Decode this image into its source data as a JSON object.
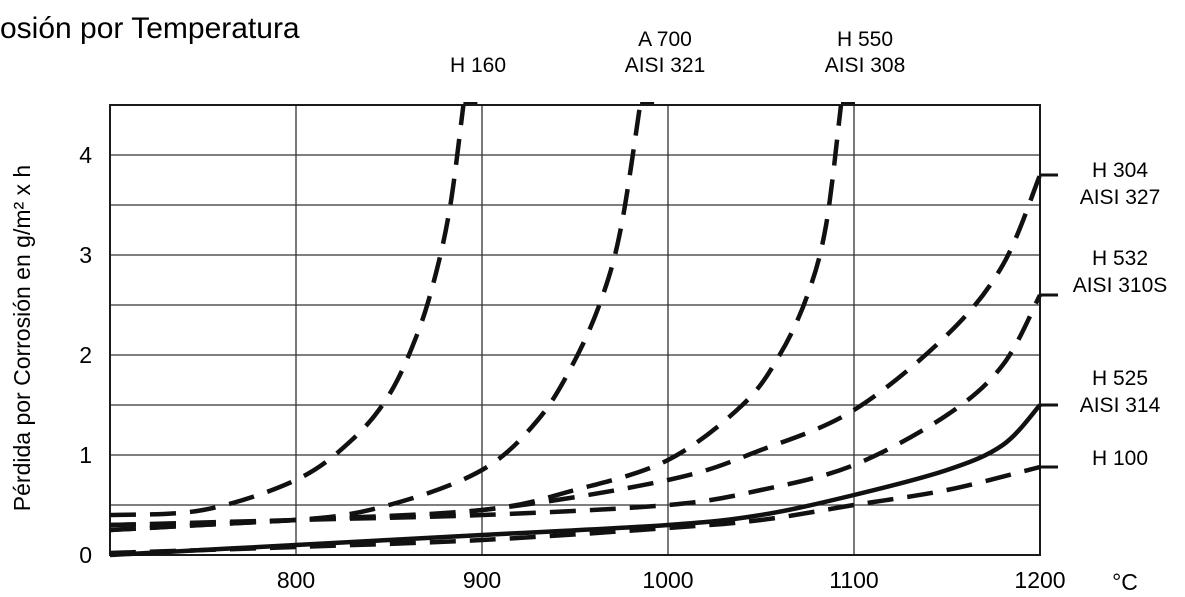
{
  "chart_data": {
    "type": "line",
    "title": "osión por Temperatura",
    "xlabel": "°C",
    "ylabel": "Pérdida por Corrosión en g/m² x h",
    "xlim": [
      700,
      1200
    ],
    "ylim": [
      0,
      4.5
    ],
    "x_ticks": [
      "800",
      "900",
      "1000",
      "1100",
      "1200"
    ],
    "y_ticks": [
      "0",
      "1",
      "2",
      "3",
      "4"
    ],
    "grid": true,
    "series": [
      {
        "name": "H 160",
        "label_lines": [
          "H 160"
        ],
        "style": "dashed",
        "points": [
          [
            700,
            0.4
          ],
          [
            750,
            0.45
          ],
          [
            800,
            0.75
          ],
          [
            830,
            1.15
          ],
          [
            850,
            1.6
          ],
          [
            865,
            2.2
          ],
          [
            875,
            2.8
          ],
          [
            883,
            3.5
          ],
          [
            890,
            4.5
          ]
        ]
      },
      {
        "name": "A 700 AISI 321",
        "label_lines": [
          "A 700",
          "AISI 321"
        ],
        "style": "dashed",
        "points": [
          [
            700,
            0.3
          ],
          [
            800,
            0.35
          ],
          [
            850,
            0.5
          ],
          [
            900,
            0.85
          ],
          [
            930,
            1.35
          ],
          [
            950,
            1.95
          ],
          [
            965,
            2.6
          ],
          [
            975,
            3.3
          ],
          [
            985,
            4.5
          ]
        ]
      },
      {
        "name": "H 550 AISI 308",
        "label_lines": [
          "H 550",
          "AISI 308"
        ],
        "style": "dashed",
        "points": [
          [
            700,
            0.25
          ],
          [
            800,
            0.35
          ],
          [
            900,
            0.45
          ],
          [
            950,
            0.65
          ],
          [
            1000,
            0.95
          ],
          [
            1040,
            1.5
          ],
          [
            1060,
            2.0
          ],
          [
            1075,
            2.6
          ],
          [
            1085,
            3.3
          ],
          [
            1093,
            4.5
          ]
        ]
      },
      {
        "name": "H 304 AISI 327",
        "label_lines": [
          "H 304",
          "AISI 327"
        ],
        "style": "dashed",
        "points": [
          [
            700,
            0.25
          ],
          [
            800,
            0.35
          ],
          [
            900,
            0.45
          ],
          [
            1000,
            0.75
          ],
          [
            1050,
            1.05
          ],
          [
            1100,
            1.45
          ],
          [
            1150,
            2.2
          ],
          [
            1180,
            2.9
          ],
          [
            1200,
            3.8
          ]
        ]
      },
      {
        "name": "H 532 AISI 310S",
        "label_lines": [
          "H 532",
          "AISI 310S"
        ],
        "style": "dashed",
        "points": [
          [
            700,
            0.3
          ],
          [
            800,
            0.35
          ],
          [
            900,
            0.4
          ],
          [
            1000,
            0.5
          ],
          [
            1050,
            0.65
          ],
          [
            1100,
            0.9
          ],
          [
            1150,
            1.4
          ],
          [
            1180,
            1.9
          ],
          [
            1200,
            2.6
          ]
        ]
      },
      {
        "name": "H 525 AISI 314",
        "label_lines": [
          "H 525",
          "AISI 314"
        ],
        "style": "solid",
        "points": [
          [
            700,
            0.0
          ],
          [
            800,
            0.1
          ],
          [
            900,
            0.2
          ],
          [
            1000,
            0.3
          ],
          [
            1050,
            0.4
          ],
          [
            1100,
            0.6
          ],
          [
            1150,
            0.85
          ],
          [
            1180,
            1.1
          ],
          [
            1200,
            1.5
          ]
        ]
      },
      {
        "name": "H 100",
        "label_lines": [
          "H 100"
        ],
        "style": "dashed",
        "points": [
          [
            700,
            0.02
          ],
          [
            800,
            0.08
          ],
          [
            900,
            0.15
          ],
          [
            1000,
            0.27
          ],
          [
            1050,
            0.35
          ],
          [
            1100,
            0.5
          ],
          [
            1150,
            0.65
          ],
          [
            1200,
            0.88
          ]
        ]
      }
    ]
  }
}
